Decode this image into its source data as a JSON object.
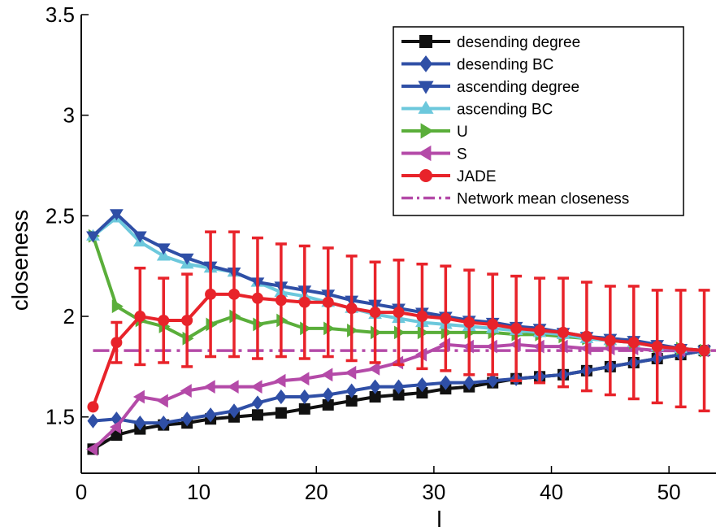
{
  "chart_data": {
    "type": "line",
    "title": "",
    "xlabel": "l",
    "ylabel": "closeness",
    "xlim": [
      0,
      54
    ],
    "ylim": [
      1.22,
      3.5
    ],
    "xticks": [
      0,
      10,
      20,
      30,
      40,
      50
    ],
    "yticks": [
      1.5,
      2,
      2.5,
      3,
      3.5
    ],
    "xtick_labels": [
      "0",
      "10",
      "20",
      "30",
      "40",
      "50"
    ],
    "ytick_labels": [
      "1.5",
      "2",
      "2.5",
      "3",
      "3.5"
    ],
    "grid": false,
    "legend_position": "top-right",
    "x": [
      1,
      3,
      5,
      7,
      9,
      11,
      13,
      15,
      17,
      19,
      21,
      23,
      25,
      27,
      29,
      31,
      33,
      35,
      37,
      39,
      41,
      43,
      45,
      47,
      49,
      51,
      53
    ],
    "series": [
      {
        "name": "desending degree",
        "color": "#111111",
        "marker": "square",
        "values": [
          1.34,
          1.41,
          1.44,
          1.46,
          1.47,
          1.49,
          1.5,
          1.51,
          1.52,
          1.54,
          1.56,
          1.58,
          1.6,
          1.61,
          1.62,
          1.64,
          1.65,
          1.67,
          1.69,
          1.7,
          1.71,
          1.73,
          1.75,
          1.77,
          1.79,
          1.81,
          1.83
        ]
      },
      {
        "name": "desending BC",
        "color": "#2f4fa6",
        "marker": "diamond",
        "values": [
          1.48,
          1.49,
          1.47,
          1.47,
          1.49,
          1.51,
          1.53,
          1.57,
          1.6,
          1.6,
          1.61,
          1.63,
          1.65,
          1.65,
          1.66,
          1.67,
          1.67,
          1.68,
          1.69,
          1.7,
          1.71,
          1.73,
          1.75,
          1.77,
          1.79,
          1.81,
          1.83
        ]
      },
      {
        "name": "ascending degree",
        "color": "#2f4fa6",
        "marker": "triangle-down",
        "values": [
          2.4,
          2.51,
          2.4,
          2.34,
          2.29,
          2.25,
          2.22,
          2.17,
          2.15,
          2.13,
          2.11,
          2.08,
          2.06,
          2.04,
          2.02,
          2.0,
          1.98,
          1.97,
          1.95,
          1.94,
          1.92,
          1.9,
          1.89,
          1.88,
          1.86,
          1.84,
          1.83
        ]
      },
      {
        "name": "ascending BC",
        "color": "#6cc8dc",
        "marker": "triangle-up",
        "values": [
          2.4,
          2.49,
          2.37,
          2.3,
          2.26,
          2.24,
          2.22,
          2.17,
          2.12,
          2.1,
          2.07,
          2.04,
          2.01,
          1.99,
          1.97,
          1.96,
          1.95,
          1.94,
          1.93,
          1.92,
          1.91,
          1.89,
          1.88,
          1.87,
          1.85,
          1.84,
          1.83
        ]
      },
      {
        "name": "U",
        "color": "#5aae3a",
        "marker": "triangle-right",
        "values": [
          2.4,
          2.05,
          1.98,
          1.95,
          1.89,
          1.96,
          2.0,
          1.96,
          1.98,
          1.94,
          1.94,
          1.93,
          1.92,
          1.92,
          1.92,
          1.92,
          1.92,
          1.92,
          1.91,
          1.91,
          1.9,
          1.89,
          1.88,
          1.87,
          1.85,
          1.84,
          1.83
        ]
      },
      {
        "name": "S",
        "color": "#b44aa8",
        "marker": "triangle-left",
        "values": [
          1.34,
          1.45,
          1.6,
          1.58,
          1.63,
          1.65,
          1.65,
          1.65,
          1.68,
          1.69,
          1.71,
          1.72,
          1.74,
          1.77,
          1.81,
          1.86,
          1.85,
          1.85,
          1.86,
          1.85,
          1.85,
          1.84,
          1.84,
          1.84,
          1.83,
          1.83,
          1.83
        ]
      },
      {
        "name": "JADE",
        "color": "#e8232a",
        "marker": "circle",
        "values": [
          1.55,
          1.87,
          2.0,
          1.98,
          1.98,
          2.11,
          2.11,
          2.09,
          2.08,
          2.07,
          2.07,
          2.04,
          2.02,
          2.02,
          2.0,
          1.99,
          1.97,
          1.96,
          1.94,
          1.93,
          1.92,
          1.9,
          1.88,
          1.87,
          1.85,
          1.84,
          1.83
        ],
        "error": [
          0,
          0.1,
          0.24,
          0.21,
          0.23,
          0.31,
          0.31,
          0.3,
          0.28,
          0.28,
          0.27,
          0.26,
          0.25,
          0.26,
          0.26,
          0.26,
          0.26,
          0.25,
          0.26,
          0.26,
          0.27,
          0.27,
          0.27,
          0.28,
          0.28,
          0.29,
          0.3
        ]
      },
      {
        "name": "Network mean closeness",
        "color": "#b44aa8",
        "marker": "none",
        "style": "dash-dot",
        "constant": 1.83
      }
    ]
  }
}
